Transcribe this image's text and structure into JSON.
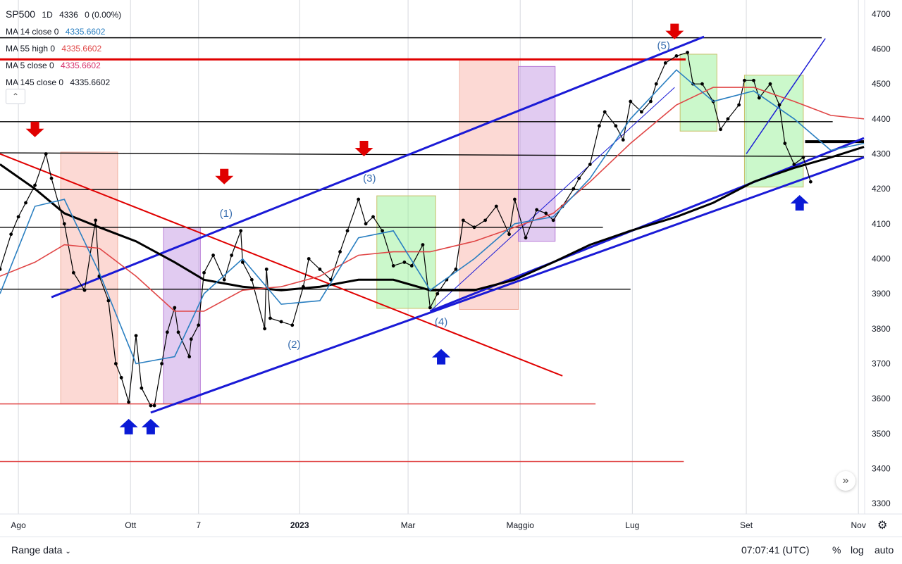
{
  "legend": {
    "symbol": "SP500",
    "interval": "1D",
    "last": "4336",
    "change": "0 (0.00%)",
    "mas": [
      {
        "label": "MA 14 close 0",
        "value": "4335.6602",
        "color": "#2a7fc1"
      },
      {
        "label": "MA 55 high 0",
        "value": "4335.6602",
        "color": "#e04646"
      },
      {
        "label": "MA 5 close 0",
        "value": "4335.6602",
        "color": "#d6336c"
      },
      {
        "label": "MA 145 close 0",
        "value": "4335.6602",
        "color": "#131722"
      }
    ]
  },
  "chart_data": {
    "type": "line",
    "title": "",
    "symbol": "SP500",
    "interval": "1D",
    "xlabel": "",
    "ylabel": "",
    "x_ticks": [
      "Ago",
      "Ott",
      "7",
      "2023",
      "Mar",
      "Maggio",
      "Lug",
      "Set",
      "Nov"
    ],
    "x_tick_dates": [
      "2022-08-01",
      "2022-10-01",
      "2022-11-07",
      "2023-01-01",
      "2023-03-01",
      "2023-05-01",
      "2023-07-01",
      "2023-09-01",
      "2023-11-01"
    ],
    "xlim": [
      "2022-07-22",
      "2023-11-04"
    ],
    "y_ticks": [
      3300,
      3400,
      3500,
      3600,
      3700,
      3800,
      3900,
      4000,
      4100,
      4200,
      4300,
      4400,
      4500,
      4600,
      4700
    ],
    "ylim": [
      3270,
      4740
    ],
    "scale": "linear",
    "grid": "vertical",
    "series": [
      {
        "name": "SP500",
        "color": "#000000",
        "x": [
          "2022-07-22",
          "2022-07-28",
          "2022-08-01",
          "2022-08-05",
          "2022-08-10",
          "2022-08-16",
          "2022-08-19",
          "2022-08-26",
          "2022-08-31",
          "2022-09-06",
          "2022-09-12",
          "2022-09-14",
          "2022-09-19",
          "2022-09-23",
          "2022-09-26",
          "2022-09-30",
          "2022-10-04",
          "2022-10-07",
          "2022-10-12",
          "2022-10-14",
          "2022-10-18",
          "2022-10-21",
          "2022-10-25",
          "2022-10-27",
          "2022-11-02",
          "2022-11-03",
          "2022-11-07",
          "2022-11-10",
          "2022-11-15",
          "2022-11-21",
          "2022-11-25",
          "2022-11-30",
          "2022-12-01",
          "2022-12-06",
          "2022-12-13",
          "2022-12-14",
          "2022-12-16",
          "2022-12-22",
          "2022-12-28",
          "2023-01-03",
          "2023-01-06",
          "2023-01-12",
          "2023-01-18",
          "2023-01-23",
          "2023-01-27",
          "2023-02-02",
          "2023-02-06",
          "2023-02-10",
          "2023-02-15",
          "2023-02-21",
          "2023-02-27",
          "2023-03-03",
          "2023-03-09",
          "2023-03-13",
          "2023-03-17",
          "2023-03-22",
          "2023-03-27",
          "2023-03-31",
          "2023-04-06",
          "2023-04-12",
          "2023-04-18",
          "2023-04-25",
          "2023-04-28",
          "2023-05-04",
          "2023-05-10",
          "2023-05-15",
          "2023-05-19",
          "2023-05-24",
          "2023-05-30",
          "2023-06-02",
          "2023-06-08",
          "2023-06-13",
          "2023-06-16",
          "2023-06-22",
          "2023-06-26",
          "2023-06-30",
          "2023-07-06",
          "2023-07-11",
          "2023-07-14",
          "2023-07-19",
          "2023-07-25",
          "2023-07-31",
          "2023-08-03",
          "2023-08-08",
          "2023-08-14",
          "2023-08-18",
          "2023-08-22",
          "2023-08-28",
          "2023-08-31",
          "2023-09-05",
          "2023-09-08",
          "2023-09-14",
          "2023-09-19",
          "2023-09-22",
          "2023-09-27",
          "2023-10-02",
          "2023-10-06"
        ],
        "values": [
          3970,
          4070,
          4120,
          4160,
          4210,
          4300,
          4230,
          4100,
          3960,
          3910,
          4110,
          3950,
          3880,
          3700,
          3660,
          3590,
          3780,
          3630,
          3580,
          3580,
          3700,
          3790,
          3860,
          3790,
          3720,
          3770,
          3810,
          3960,
          4010,
          3940,
          4010,
          4080,
          3990,
          3940,
          3800,
          3970,
          3830,
          3820,
          3810,
          3920,
          4000,
          3970,
          3940,
          4020,
          4080,
          4170,
          4100,
          4120,
          4080,
          3980,
          3990,
          3980,
          4040,
          3860,
          3900,
          3940,
          3970,
          4110,
          4090,
          4110,
          4150,
          4070,
          4170,
          4060,
          4140,
          4130,
          4110,
          4150,
          4200,
          4230,
          4270,
          4380,
          4420,
          4380,
          4340,
          4450,
          4420,
          4450,
          4500,
          4560,
          4580,
          4590,
          4500,
          4500,
          4450,
          4370,
          4400,
          4440,
          4510,
          4510,
          4460,
          4500,
          4440,
          4330,
          4270,
          4290,
          4220
        ]
      },
      {
        "name": "MA 145 close 0",
        "color": "#000000",
        "x": [
          "2022-07-22",
          "2022-08-10",
          "2022-08-26",
          "2022-09-14",
          "2022-10-04",
          "2022-10-25",
          "2022-11-10",
          "2022-12-01",
          "2022-12-22",
          "2023-01-12",
          "2023-02-02",
          "2023-02-21",
          "2023-03-13",
          "2023-04-06",
          "2023-04-28",
          "2023-05-19",
          "2023-06-08",
          "2023-06-30",
          "2023-07-25",
          "2023-08-14",
          "2023-09-05",
          "2023-09-27",
          "2023-10-17",
          "2023-11-04"
        ],
        "values": [
          4270,
          4200,
          4130,
          4090,
          4050,
          3990,
          3940,
          3920,
          3910,
          3920,
          3940,
          3940,
          3910,
          3910,
          3940,
          3990,
          4040,
          4080,
          4120,
          4160,
          4220,
          4260,
          4290,
          4320
        ]
      },
      {
        "name": "MA 55 high 0",
        "color": "#e04646",
        "x": [
          "2022-07-22",
          "2022-08-10",
          "2022-08-26",
          "2022-09-14",
          "2022-10-04",
          "2022-10-25",
          "2022-11-10",
          "2022-12-01",
          "2022-12-22",
          "2023-01-12",
          "2023-02-02",
          "2023-02-21",
          "2023-03-13",
          "2023-04-06",
          "2023-04-28",
          "2023-05-19",
          "2023-06-08",
          "2023-06-30",
          "2023-07-25",
          "2023-08-14",
          "2023-09-05",
          "2023-09-27",
          "2023-10-17",
          "2023-11-04"
        ],
        "values": [
          3950,
          3990,
          4040,
          4030,
          3950,
          3850,
          3850,
          3910,
          3920,
          3950,
          4010,
          4020,
          4020,
          4050,
          4090,
          4130,
          4220,
          4330,
          4440,
          4490,
          4490,
          4450,
          4410,
          4400
        ]
      },
      {
        "name": "MA 14 close 0",
        "color": "#2a7fc1",
        "x": [
          "2022-07-22",
          "2022-08-10",
          "2022-08-26",
          "2022-09-14",
          "2022-10-04",
          "2022-10-25",
          "2022-11-10",
          "2022-12-01",
          "2022-12-22",
          "2023-01-12",
          "2023-02-02",
          "2023-02-21",
          "2023-03-13",
          "2023-04-06",
          "2023-04-28",
          "2023-05-19",
          "2023-06-08",
          "2023-06-30",
          "2023-07-25",
          "2023-08-14",
          "2023-09-05",
          "2023-09-27",
          "2023-10-17",
          "2023-11-04"
        ],
        "values": [
          3900,
          4150,
          4170,
          3960,
          3700,
          3720,
          3900,
          4000,
          3870,
          3880,
          4060,
          4080,
          3910,
          4000,
          4100,
          4120,
          4230,
          4400,
          4540,
          4450,
          4480,
          4400,
          4310,
          4330
        ]
      }
    ],
    "annotations": [
      {
        "text": "(1)",
        "x": "2022-11-22",
        "y": 4120
      },
      {
        "text": "(2)",
        "x": "2022-12-29",
        "y": 3745
      },
      {
        "text": "(3)",
        "x": "2023-02-08",
        "y": 4220
      },
      {
        "text": "(4)",
        "x": "2023-03-19",
        "y": 3810
      },
      {
        "text": "(5)",
        "x": "2023-07-18",
        "y": 4600
      }
    ]
  },
  "time_display": "07:07:41 (UTC)",
  "bottom_bar": {
    "range_label": "Range data",
    "pct_label": "%",
    "log_label": "log",
    "auto_label": "auto"
  }
}
